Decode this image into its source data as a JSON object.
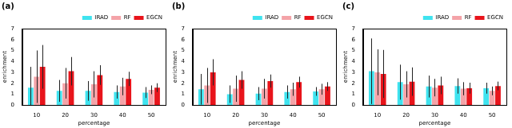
{
  "chart_data": [
    {
      "type": "bar",
      "title": "(a)",
      "x_label": "percentage",
      "y_label": "enrichment",
      "categories": [
        "10",
        "20",
        "30",
        "40",
        "50"
      ],
      "ylim": [
        0,
        7
      ],
      "yticks": [
        0,
        1,
        2,
        3,
        4,
        5,
        6,
        7
      ],
      "grid": false,
      "legend": "upper right",
      "series": [
        {
          "name": "IRAD",
          "color": "#3fe3ef",
          "values": [
            1.6,
            1.3,
            1.3,
            1.2,
            1.15
          ],
          "errors": [
            1.9,
            1.0,
            0.9,
            0.6,
            0.5
          ]
        },
        {
          "name": "RF",
          "color": "#f4a3a8",
          "values": [
            2.6,
            2.0,
            1.9,
            1.7,
            1.4
          ],
          "errors": [
            2.4,
            1.4,
            1.2,
            0.8,
            0.4
          ]
        },
        {
          "name": "EGCN",
          "color": "#e8141b",
          "values": [
            3.5,
            3.1,
            2.75,
            2.4,
            1.6
          ],
          "errors": [
            2.0,
            1.3,
            0.9,
            0.65,
            0.4
          ]
        }
      ]
    },
    {
      "type": "bar",
      "title": "(b)",
      "x_label": "percentage",
      "y_label": "enrichment",
      "categories": [
        "10",
        "20",
        "30",
        "40",
        "50"
      ],
      "ylim": [
        0,
        7
      ],
      "yticks": [
        0,
        1,
        2,
        3,
        4,
        5,
        6,
        7
      ],
      "grid": false,
      "legend": "upper right",
      "series": [
        {
          "name": "IRAD",
          "color": "#3fe3ef",
          "values": [
            1.45,
            1.0,
            1.05,
            1.2,
            1.25
          ],
          "errors": [
            1.4,
            0.8,
            0.6,
            0.6,
            0.4
          ]
        },
        {
          "name": "RF",
          "color": "#f4a3a8",
          "values": [
            1.8,
            1.5,
            1.5,
            1.45,
            1.45
          ],
          "errors": [
            1.6,
            1.2,
            0.9,
            0.6,
            0.5
          ]
        },
        {
          "name": "EGCN",
          "color": "#e8141b",
          "values": [
            3.0,
            2.3,
            2.2,
            2.1,
            1.7
          ],
          "errors": [
            1.2,
            0.8,
            0.6,
            0.5,
            0.4
          ]
        }
      ]
    },
    {
      "type": "bar",
      "title": "(c)",
      "x_label": "percentage",
      "y_label": "enrichment",
      "categories": [
        "10",
        "20",
        "30",
        "40",
        "50"
      ],
      "ylim": [
        0,
        7
      ],
      "yticks": [
        0,
        1,
        2,
        3,
        4,
        5,
        6,
        7
      ],
      "grid": false,
      "legend": "upper right",
      "series": [
        {
          "name": "IRAD",
          "color": "#3fe3ef",
          "values": [
            3.1,
            2.1,
            1.7,
            1.75,
            1.55
          ],
          "errors": [
            3.0,
            1.6,
            1.0,
            0.7,
            0.5
          ]
        },
        {
          "name": "RF",
          "color": "#f4a3a8",
          "values": [
            3.0,
            1.9,
            1.6,
            1.5,
            1.3
          ],
          "errors": [
            2.1,
            1.2,
            0.8,
            0.6,
            0.4
          ]
        },
        {
          "name": "EGCN",
          "color": "#e8141b",
          "values": [
            2.85,
            2.15,
            1.8,
            1.55,
            1.75
          ],
          "errors": [
            2.2,
            1.3,
            0.8,
            0.5,
            0.4
          ]
        }
      ]
    }
  ]
}
